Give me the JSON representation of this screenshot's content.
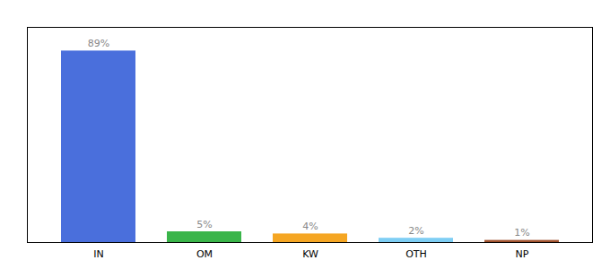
{
  "chart_data": {
    "type": "bar",
    "categories": [
      "IN",
      "OM",
      "KW",
      "OTH",
      "NP"
    ],
    "values": [
      89,
      5,
      4,
      2,
      1
    ],
    "value_labels": [
      "89%",
      "5%",
      "4%",
      "2%",
      "1%"
    ],
    "data_labels": true,
    "colors": [
      "#4a6fdc",
      "#3ab54a",
      "#f5a623",
      "#7ecef4",
      "#a0522d"
    ],
    "ylim": [
      0,
      100
    ],
    "tick_labels": "x"
  }
}
